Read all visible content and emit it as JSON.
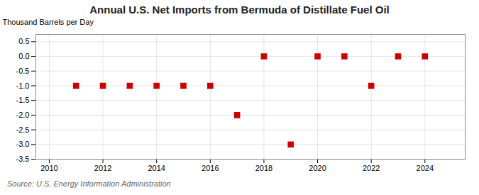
{
  "chart_data": {
    "type": "scatter",
    "title": "Annual U.S. Net Imports from Bermuda of Distillate Fuel Oil",
    "ylabel": "Thousand Barrels per Day",
    "annotations": [
      "Source: U.S. Energy Information Administration"
    ],
    "x": [
      2011,
      2012,
      2013,
      2014,
      2015,
      2016,
      2017,
      2018,
      2019,
      2020,
      2021,
      2022,
      2023,
      2024
    ],
    "values": [
      -1,
      -1,
      -1,
      -1,
      -1,
      -1,
      -2,
      0,
      -3,
      0,
      0,
      -1,
      0,
      0
    ],
    "color": "#cc0000",
    "marker": "square",
    "xlim": [
      2009.5,
      2025.5
    ],
    "ylim": [
      -3.5,
      0.75
    ],
    "xticks": [
      2010,
      2012,
      2014,
      2016,
      2018,
      2020,
      2022,
      2024
    ],
    "yticks": [
      0.5,
      {
        "value": 0,
        "label": "0.0"
      },
      -0.5,
      {
        "value": -1,
        "label": "-1.0"
      },
      -1.5,
      {
        "value": -2,
        "label": "-2.0"
      },
      -2.5,
      {
        "value": -3,
        "label": "-3.0"
      },
      -3.5
    ],
    "grid": true
  }
}
